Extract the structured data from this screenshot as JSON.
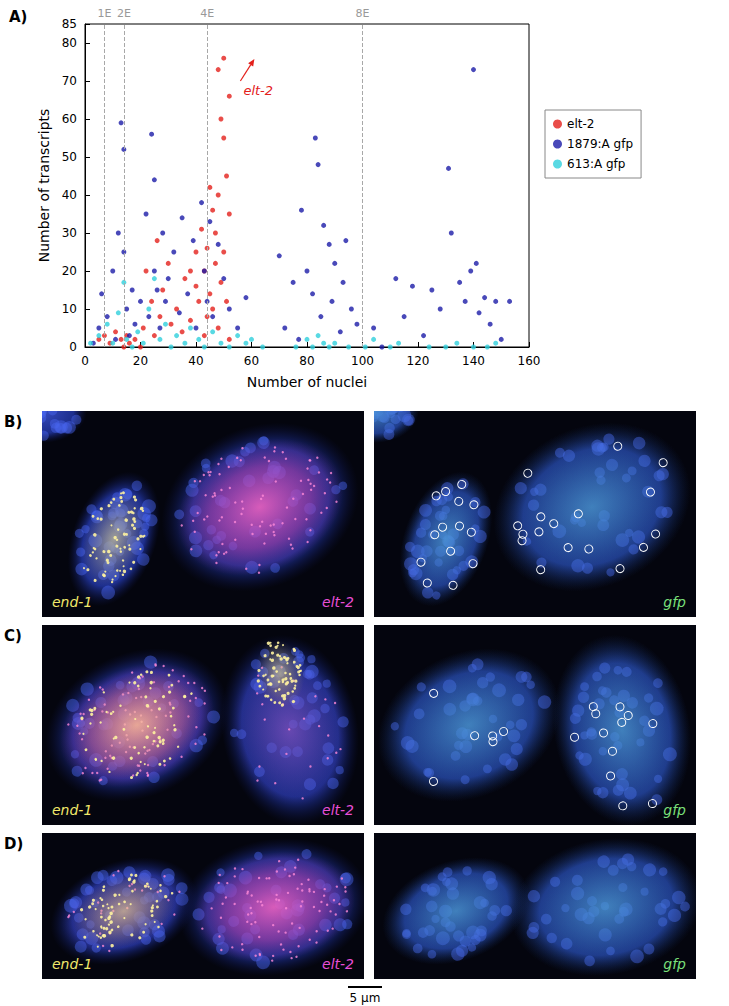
{
  "chart_data": {
    "type": "scatter",
    "panel_label": "A)",
    "x_label": "Number of nuclei",
    "y_label": "Number of transcripts",
    "xlim": [
      0,
      160
    ],
    "xticks": [
      0,
      20,
      40,
      60,
      80,
      100,
      120,
      140,
      160
    ],
    "ylim": [
      0,
      85
    ],
    "yticks": [
      0,
      10,
      20,
      30,
      40,
      50,
      60,
      70,
      80
    ],
    "grid": false,
    "legend": "right",
    "marker": "circle",
    "series": [
      {
        "name": "elt-2",
        "color": "#e3201b",
        "x": [
          5,
          7,
          9,
          11,
          13,
          15,
          14,
          16,
          18,
          20,
          21,
          22,
          24,
          25,
          26,
          27,
          28,
          30,
          31,
          33,
          35,
          36,
          38,
          38,
          40,
          40,
          41,
          42,
          43,
          43,
          44,
          44,
          45,
          45,
          46,
          46,
          47,
          47,
          48,
          48,
          48,
          49,
          49,
          50,
          50,
          50,
          51,
          51,
          52,
          52,
          52
        ],
        "values": [
          2,
          3,
          1,
          4,
          2,
          3,
          0,
          1,
          2,
          0,
          5,
          20,
          12,
          3,
          28,
          8,
          15,
          22,
          6,
          10,
          4,
          18,
          7,
          20,
          25,
          16,
          12,
          31,
          20,
          3,
          26,
          8,
          42,
          14,
          10,
          36,
          22,
          30,
          73,
          5,
          40,
          17,
          60,
          76,
          25,
          55,
          45,
          12,
          66,
          35,
          2
        ]
      },
      {
        "name": "1879:A gfp",
        "color": "#1c1ca8",
        "x": [
          3,
          5,
          6,
          8,
          10,
          11,
          12,
          13,
          14,
          14,
          15,
          16,
          17,
          18,
          20,
          22,
          23,
          24,
          25,
          25,
          26,
          27,
          28,
          29,
          30,
          32,
          34,
          35,
          37,
          39,
          40,
          42,
          43,
          44,
          45,
          46,
          48,
          50,
          52,
          55,
          58,
          70,
          72,
          75,
          77,
          78,
          80,
          82,
          83,
          84,
          85,
          86,
          88,
          89,
          90,
          92,
          93,
          94,
          96,
          98,
          104,
          107,
          112,
          115,
          118,
          122,
          125,
          128,
          131,
          132,
          135,
          137,
          139,
          140,
          141,
          142,
          144,
          146,
          148,
          150,
          153
        ],
        "values": [
          1,
          5,
          14,
          8,
          20,
          2,
          30,
          59,
          52,
          25,
          10,
          3,
          15,
          6,
          12,
          35,
          8,
          56,
          44,
          20,
          15,
          5,
          30,
          12,
          18,
          25,
          9,
          34,
          14,
          28,
          5,
          38,
          20,
          12,
          33,
          8,
          27,
          18,
          10,
          5,
          13,
          24,
          5,
          17,
          2,
          36,
          20,
          14,
          55,
          48,
          8,
          32,
          27,
          12,
          22,
          4,
          17,
          28,
          10,
          6,
          5,
          0,
          18,
          8,
          16,
          3,
          15,
          10,
          47,
          30,
          17,
          12,
          20,
          73,
          22,
          9,
          13,
          6,
          12,
          2,
          12
        ]
      },
      {
        "name": "613:A gfp",
        "color": "#2fd0dc",
        "x": [
          2,
          5,
          8,
          10,
          12,
          14,
          15,
          17,
          19,
          21,
          23,
          25,
          27,
          29,
          31,
          33,
          36,
          38,
          41,
          43,
          46,
          49,
          52,
          55,
          58,
          60,
          64,
          76,
          80,
          82,
          84,
          86,
          88,
          90,
          95,
          101,
          104,
          110,
          113,
          124,
          130,
          134,
          140,
          145,
          148
        ],
        "values": [
          1,
          3,
          6,
          1,
          9,
          17,
          2,
          0,
          4,
          1,
          10,
          18,
          2,
          6,
          0,
          3,
          1,
          5,
          2,
          0,
          4,
          1,
          0,
          3,
          1,
          2,
          0,
          0,
          2,
          0,
          3,
          1,
          0,
          1,
          0,
          0,
          2,
          0,
          1,
          0,
          0,
          1,
          0,
          0,
          1
        ]
      }
    ],
    "annotations": [
      {
        "text": "1E",
        "x": 7
      },
      {
        "text": "2E",
        "x": 14
      },
      {
        "text": "4E",
        "x": 44
      },
      {
        "text": "8E",
        "x": 100
      },
      {
        "text": "elt-2",
        "x": 56,
        "y": 70,
        "color": "#e3201b"
      }
    ]
  },
  "image_panels": [
    {
      "label": "B)",
      "left": [
        {
          "text": "end-1",
          "color": "#f2e86b"
        },
        {
          "text": "elt-2",
          "color": "#e84fd6"
        }
      ],
      "right": [
        {
          "text": "gfp",
          "color": "#7be07b"
        }
      ]
    },
    {
      "label": "C)",
      "left": [
        {
          "text": "end-1",
          "color": "#f2e86b"
        },
        {
          "text": "elt-2",
          "color": "#e84fd6"
        }
      ],
      "right": [
        {
          "text": "gfp",
          "color": "#7be07b"
        }
      ]
    },
    {
      "label": "D)",
      "left": [
        {
          "text": "end-1",
          "color": "#f2e86b"
        },
        {
          "text": "elt-2",
          "color": "#e84fd6"
        }
      ],
      "right": [
        {
          "text": "gfp",
          "color": "#7be07b"
        }
      ]
    }
  ],
  "scale_bar": "5 µm"
}
